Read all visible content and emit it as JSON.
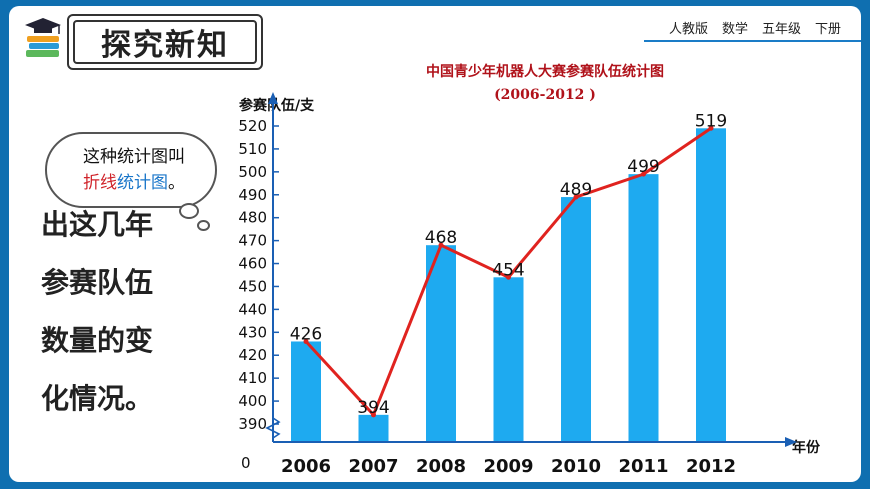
{
  "section_title": "探究新知",
  "header": {
    "publisher": "人教版",
    "subject": "数学",
    "grade": "五年级",
    "volume": "下册"
  },
  "left_text": [
    "出这几年",
    "参赛队伍",
    "数量的变",
    "化情况。"
  ],
  "bubble": {
    "line1": "这种统计图叫",
    "hl_a": "折线",
    "hl_b": "统计图",
    "suffix": "。"
  },
  "colors": {
    "bar": "#1eaaf0",
    "line": "#e0231f",
    "axis": "#1a5fb4",
    "title": "#b0121a"
  },
  "chart_data": {
    "type": "bar",
    "title": "中国青少年机器人大赛参赛队伍统计图",
    "subtitle": "(2006-2012 )",
    "ylabel": "参赛队伍/支",
    "xlabel": "年份",
    "origin_label": "0",
    "categories": [
      "2006",
      "2007",
      "2008",
      "2009",
      "2010",
      "2011",
      "2012"
    ],
    "values": [
      426,
      394,
      468,
      454,
      489,
      499,
      519
    ],
    "overlay_line": true,
    "ylim": [
      390,
      520
    ],
    "yticks": [
      390,
      400,
      410,
      420,
      430,
      440,
      450,
      460,
      470,
      480,
      490,
      500,
      510,
      520
    ],
    "axis_break": true
  }
}
